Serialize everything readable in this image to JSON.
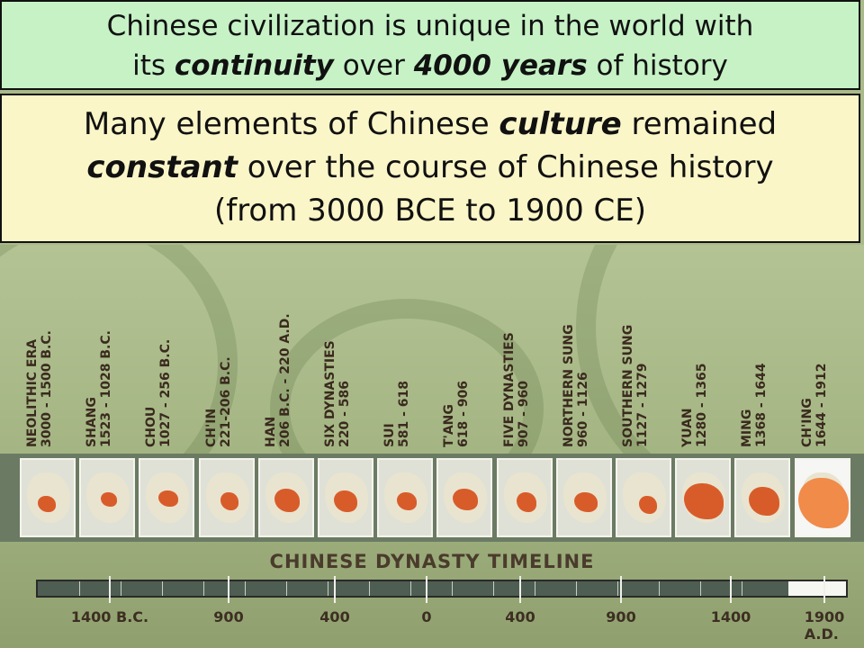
{
  "banner_top": {
    "part1": "Chinese civilization is unique in the world with",
    "part2": "its ",
    "emph1": "continuity",
    "part3": " over ",
    "emph2": "4000 years",
    "part4": " of history"
  },
  "banner_mid": {
    "part1": "Many elements of Chinese ",
    "emph1": "culture",
    "part2": " remained",
    "emph2": "constant",
    "part3": " over the course of Chinese history",
    "part4": "(from 3000 BCE to 1900 CE)"
  },
  "dynasties": [
    {
      "name": "NEOLITHIC ERA",
      "dates": "3000 - 1500 B.C."
    },
    {
      "name": "SHANG",
      "dates": "1523 - 1028 B.C."
    },
    {
      "name": "CHOU",
      "dates": "1027 - 256 B.C."
    },
    {
      "name": "CH'IN",
      "dates": "221-206 B.C."
    },
    {
      "name": "HAN",
      "dates": "206 B.C. - 220 A.D."
    },
    {
      "name": "SIX DYNASTIES",
      "dates": "220 - 586"
    },
    {
      "name": "SUI",
      "dates": "581 - 618"
    },
    {
      "name": "T'ANG",
      "dates": "618 - 906"
    },
    {
      "name": "FIVE DYNASTIES",
      "dates": "907 - 960"
    },
    {
      "name": "NORTHERN SUNG",
      "dates": "960 - 1126"
    },
    {
      "name": "SOUTHERN SUNG",
      "dates": "1127 - 1279"
    },
    {
      "name": "YUAN",
      "dates": "1280 - 1365"
    },
    {
      "name": "MING",
      "dates": "1368 - 1644"
    },
    {
      "name": "CH'ING",
      "dates": "1644 - 1912"
    }
  ],
  "timeline": {
    "title": "CHINESE DYNASTY TIMELINE",
    "ticks": [
      "1400 B.C.",
      "900",
      "400",
      "0",
      "400",
      "900",
      "1400",
      "1900 A.D."
    ]
  },
  "colors": {
    "top_banner": "#c6f2c6",
    "mid_banner": "#fbf6c8",
    "territory": "#d85c2a"
  }
}
